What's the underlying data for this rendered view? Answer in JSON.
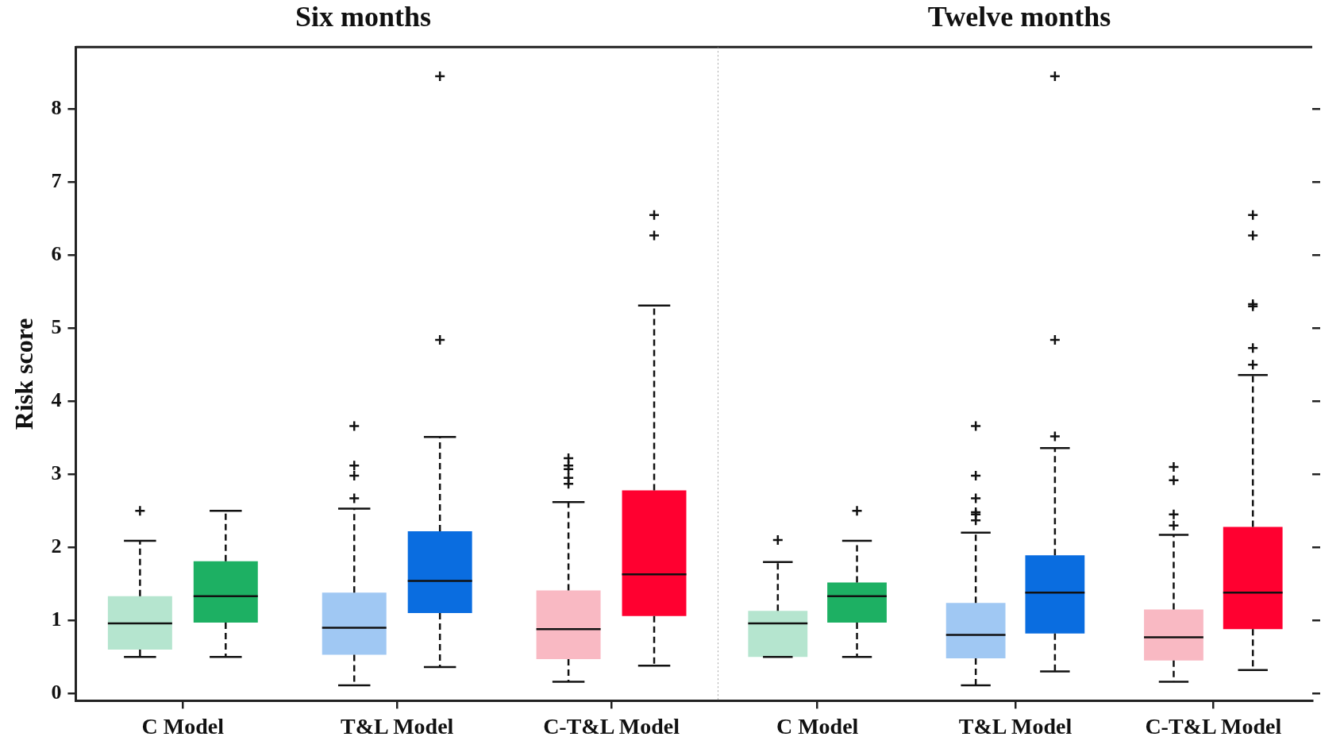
{
  "chart_data": [
    {
      "type": "box",
      "title": "Six months",
      "ylabel": "Risk score",
      "categories": [
        "C Model",
        "T&L Model",
        "C-T&L Model"
      ],
      "ylim": [
        -0.1,
        8.85
      ],
      "yticks": [
        0,
        1,
        2,
        3,
        4,
        5,
        6,
        7,
        8
      ],
      "grid": false,
      "legend": false,
      "marker": "cross",
      "series": [
        {
          "colors": [
            "#b5e5cf",
            "#a0c8f3",
            "#f9b9c3"
          ],
          "boxes": [
            {
              "low": 0.5,
              "q1": 0.6,
              "median": 0.96,
              "q3": 1.33,
              "high": 2.09,
              "outliers": [
                2.5
              ]
            },
            {
              "low": 0.11,
              "q1": 0.53,
              "median": 0.9,
              "q3": 1.38,
              "high": 2.53,
              "outliers": [
                2.67,
                2.98,
                3.12,
                3.66
              ]
            },
            {
              "low": 0.16,
              "q1": 0.47,
              "median": 0.88,
              "q3": 1.41,
              "high": 2.62,
              "outliers": [
                2.87,
                2.95,
                3.07,
                3.12,
                3.22
              ]
            }
          ]
        },
        {
          "colors": [
            "#1db063",
            "#0a6de0",
            "#ff0030"
          ],
          "boxes": [
            {
              "low": 0.5,
              "q1": 0.97,
              "median": 1.33,
              "q3": 1.81,
              "high": 2.5
            },
            {
              "low": 0.36,
              "q1": 1.1,
              "median": 1.54,
              "q3": 2.22,
              "high": 3.51,
              "outliers": [
                4.84,
                8.45
              ]
            },
            {
              "low": 0.38,
              "q1": 1.06,
              "median": 1.63,
              "q3": 2.78,
              "high": 5.31,
              "outliers": [
                6.27,
                6.55
              ]
            }
          ]
        }
      ]
    },
    {
      "type": "box",
      "title": "Twelve months",
      "categories": [
        "C Model",
        "T&L Model",
        "C-T&L Model"
      ],
      "ylim": [
        -0.1,
        8.85
      ],
      "yticks": [
        0,
        1,
        2,
        3,
        4,
        5,
        6,
        7,
        8
      ],
      "tick_labels": "x",
      "grid": false,
      "legend": false,
      "marker": "cross",
      "series": [
        {
          "colors": [
            "#b5e5cf",
            "#a0c8f3",
            "#f9b9c3"
          ],
          "boxes": [
            {
              "low": 0.5,
              "q1": 0.5,
              "median": 0.96,
              "q3": 1.13,
              "high": 1.8,
              "outliers": [
                2.1
              ]
            },
            {
              "low": 0.11,
              "q1": 0.48,
              "median": 0.8,
              "q3": 1.24,
              "high": 2.2,
              "outliers": [
                2.37,
                2.45,
                2.48,
                2.67,
                2.98,
                3.66
              ]
            },
            {
              "low": 0.16,
              "q1": 0.45,
              "median": 0.77,
              "q3": 1.15,
              "high": 2.17,
              "outliers": [
                2.3,
                2.45,
                2.92,
                3.1
              ]
            }
          ]
        },
        {
          "colors": [
            "#1db063",
            "#0a6de0",
            "#ff0030"
          ],
          "boxes": [
            {
              "low": 0.5,
              "q1": 0.97,
              "median": 1.33,
              "q3": 1.52,
              "high": 2.09,
              "outliers": [
                2.5
              ]
            },
            {
              "low": 0.3,
              "q1": 0.82,
              "median": 1.38,
              "q3": 1.89,
              "high": 3.36,
              "outliers": [
                3.52,
                4.84,
                8.45
              ]
            },
            {
              "low": 0.32,
              "q1": 0.88,
              "median": 1.38,
              "q3": 2.28,
              "high": 4.36,
              "outliers": [
                4.5,
                4.73,
                5.3,
                5.33,
                6.27,
                6.55
              ]
            }
          ]
        }
      ]
    }
  ]
}
